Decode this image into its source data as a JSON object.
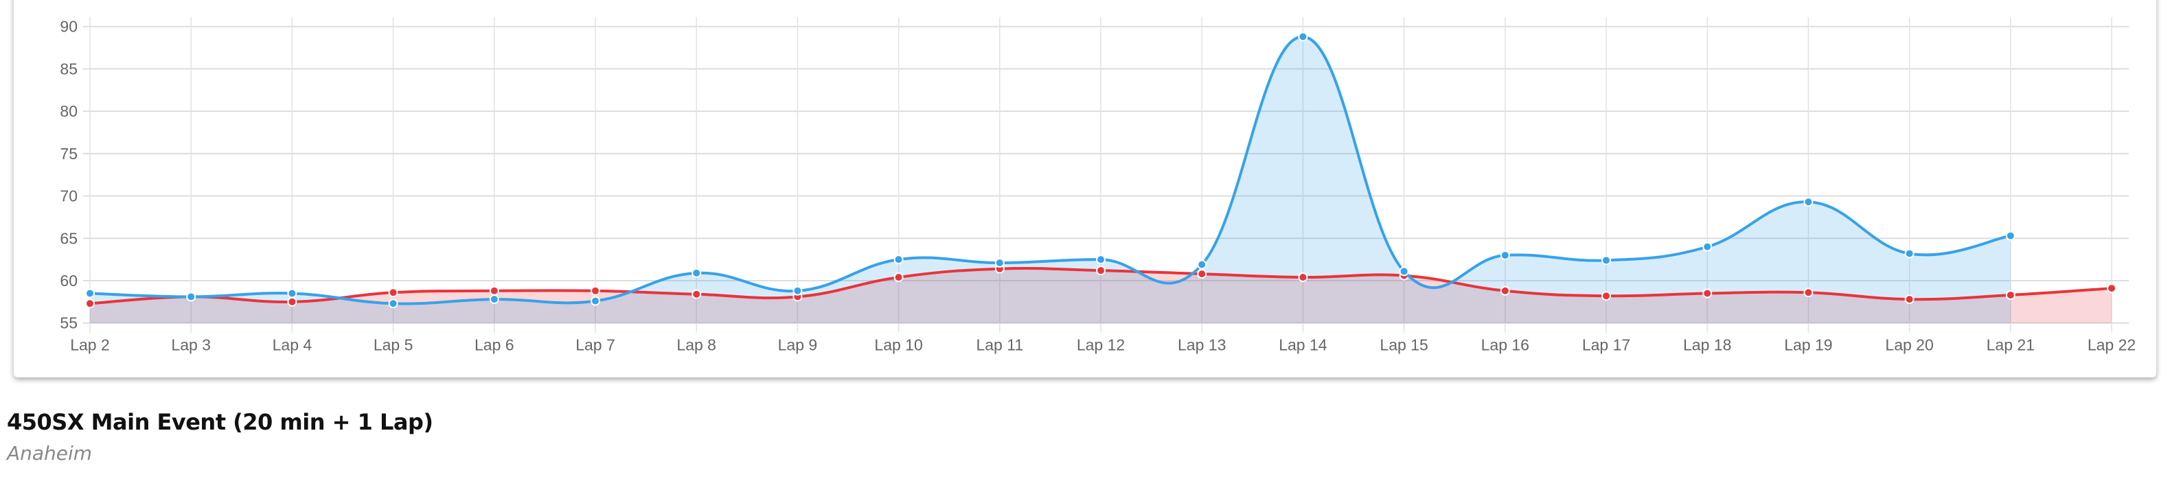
{
  "chart_data": {
    "type": "line",
    "categories": [
      "Lap 2",
      "Lap 3",
      "Lap 4",
      "Lap 5",
      "Lap 6",
      "Lap 7",
      "Lap 8",
      "Lap 9",
      "Lap 10",
      "Lap 11",
      "Lap 12",
      "Lap 13",
      "Lap 14",
      "Lap 15",
      "Lap 16",
      "Lap 17",
      "Lap 18",
      "Lap 19",
      "Lap 20",
      "Lap 21",
      "Lap 22"
    ],
    "yticks": [
      "90",
      "85",
      "80",
      "75",
      "70",
      "65",
      "60",
      "55"
    ],
    "ylim": [
      55,
      90
    ],
    "grid": true,
    "fill": true,
    "series": [
      {
        "color": "#e8353a",
        "fill": "rgba(232,53,58,0.2)",
        "values": [
          57.3,
          58.1,
          57.5,
          58.6,
          58.8,
          58.8,
          58.4,
          58.1,
          60.4,
          61.4,
          61.2,
          60.8,
          60.4,
          60.6,
          58.8,
          58.2,
          58.5,
          58.6,
          57.8,
          58.3,
          59.1
        ]
      },
      {
        "color": "#36a2eb",
        "fill": "rgba(54,162,235,0.2)",
        "values": [
          58.5,
          58.1,
          58.5,
          57.3,
          57.8,
          57.6,
          60.9,
          58.8,
          62.5,
          62.1,
          62.5,
          61.9,
          88.8,
          61.1,
          63.0,
          62.4,
          64.0,
          69.3,
          63.2,
          65.3,
          null
        ]
      }
    ]
  },
  "event": {
    "title": "450SX Main Event (20 min + 1 Lap)",
    "venue": "Anaheim"
  }
}
